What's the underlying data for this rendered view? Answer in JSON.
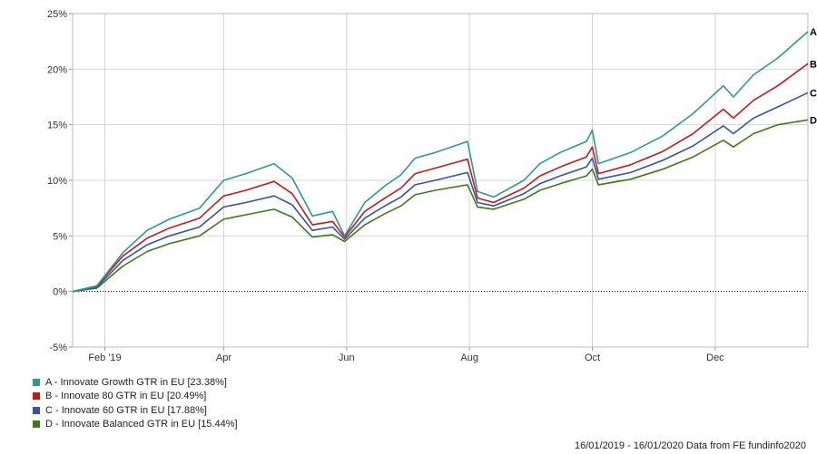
{
  "chart_data": {
    "type": "line",
    "ylim": [
      -5,
      25
    ],
    "yticks": [
      "-5%",
      "0%",
      "5%",
      "10%",
      "15%",
      "20%",
      "25%"
    ],
    "xticks": [
      "Feb '19",
      "Apr",
      "Jun",
      "Aug",
      "Oct",
      "Dec"
    ],
    "grid": true,
    "legend_placement": "bottom-left",
    "x_dates": [
      "2019-01-16",
      "2019-01-28",
      "2019-02-10",
      "2019-02-22",
      "2019-03-05",
      "2019-03-20",
      "2019-04-01",
      "2019-04-12",
      "2019-04-26",
      "2019-05-05",
      "2019-05-15",
      "2019-05-25",
      "2019-05-31",
      "2019-06-10",
      "2019-06-20",
      "2019-06-28",
      "2019-07-05",
      "2019-07-15",
      "2019-07-31",
      "2019-08-05",
      "2019-08-13",
      "2019-08-28",
      "2019-09-05",
      "2019-09-15",
      "2019-09-28",
      "2019-10-01",
      "2019-10-04",
      "2019-10-20",
      "2019-11-05",
      "2019-11-20",
      "2019-12-05",
      "2019-12-10",
      "2019-12-20",
      "2020-01-01",
      "2020-01-16"
    ],
    "series": [
      {
        "name": "A",
        "color": "#2e9a8c",
        "values": [
          0,
          0.5,
          3.5,
          5.5,
          6.5,
          7.5,
          10,
          10.6,
          11.5,
          10.2,
          6.8,
          7.2,
          5,
          8,
          9.5,
          10.5,
          12,
          12.5,
          13.5,
          9,
          8.5,
          10,
          11.5,
          12.5,
          13.5,
          14.5,
          11.5,
          12.5,
          14,
          16,
          18.5,
          17.5,
          19.5,
          21,
          23.38
        ]
      },
      {
        "name": "B",
        "color": "#c01c1c",
        "values": [
          0,
          0.5,
          3.2,
          4.8,
          5.7,
          6.6,
          8.6,
          9.1,
          9.9,
          8.8,
          6,
          6.3,
          4.9,
          7.2,
          8.4,
          9.3,
          10.6,
          11.1,
          11.9,
          8.4,
          8,
          9.3,
          10.4,
          11.2,
          12.1,
          13,
          10.6,
          11.4,
          12.6,
          14.2,
          16.4,
          15.6,
          17.2,
          18.5,
          20.49
        ]
      },
      {
        "name": "C",
        "color": "#3852a6",
        "values": [
          0,
          0.4,
          2.8,
          4.2,
          5,
          5.8,
          7.6,
          8,
          8.6,
          7.8,
          5.5,
          5.8,
          4.7,
          6.6,
          7.7,
          8.5,
          9.6,
          10,
          10.7,
          8,
          7.7,
          8.8,
          9.7,
          10.4,
          11.2,
          12,
          10.1,
          10.7,
          11.8,
          13.1,
          14.9,
          14.2,
          15.6,
          16.6,
          17.88
        ]
      },
      {
        "name": "D",
        "color": "#3c7a1e",
        "values": [
          0,
          0.3,
          2.3,
          3.6,
          4.3,
          5,
          6.5,
          6.9,
          7.4,
          6.7,
          4.9,
          5.1,
          4.5,
          6,
          7,
          7.7,
          8.7,
          9.1,
          9.6,
          7.6,
          7.4,
          8.3,
          9.1,
          9.7,
          10.4,
          11,
          9.6,
          10.1,
          11,
          12.1,
          13.6,
          13,
          14.2,
          15,
          15.44
        ]
      }
    ]
  },
  "legend": [
    {
      "label": "A - Innovate Growth GTR in EU [23.38%]",
      "color": "#2e9a8c"
    },
    {
      "label": "B - Innovate 80 GTR in EU [20.49%]",
      "color": "#c01c1c"
    },
    {
      "label": "C - Innovate 60 GTR in EU [17.88%]",
      "color": "#3852a6"
    },
    {
      "label": "D - Innovate Balanced GTR in EU [15.44%]",
      "color": "#3c7a1e"
    }
  ],
  "footer": "16/01/2019 - 16/01/2020 Data from FE fundinfo2020"
}
